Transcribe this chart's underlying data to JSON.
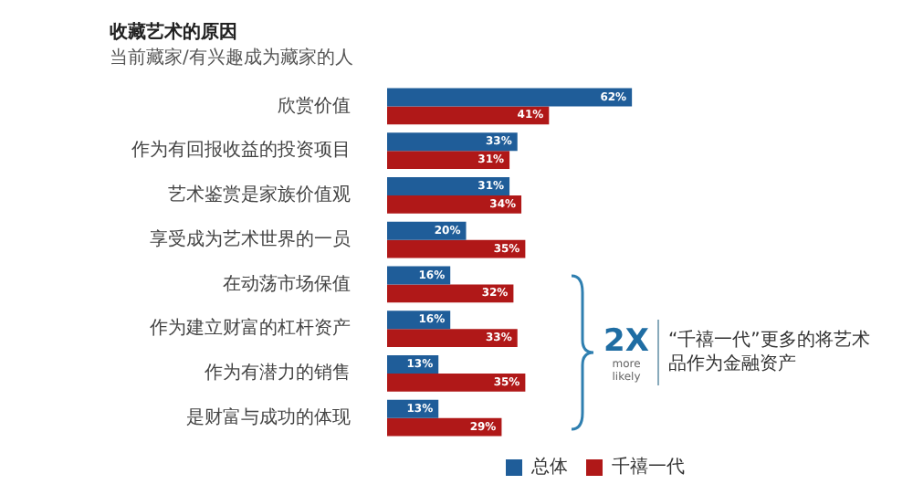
{
  "chart_data": {
    "type": "bar",
    "orientation": "horizontal",
    "title": "收藏艺术的原因",
    "subtitle": "当前藏家/有兴趣成为藏家的人",
    "categories": [
      "欣赏价值",
      "作为有回报收益的投资项目",
      "艺术鉴赏是家族价值观",
      "享受成为艺术世界的一员",
      "在动荡市场保值",
      "作为建立财富的杠杆资产",
      "作为有潜力的销售",
      "是财富与成功的体现"
    ],
    "series": [
      {
        "name": "总体",
        "color": "#1f5d99",
        "values": [
          62,
          33,
          31,
          20,
          16,
          16,
          13,
          13
        ],
        "value_labels": [
          "62%",
          "33%",
          "31%",
          "20%",
          "16%",
          "16%",
          "13%",
          "13%"
        ]
      },
      {
        "name": "千禧一代",
        "color": "#b01818",
        "values": [
          41,
          31,
          34,
          35,
          32,
          33,
          35,
          29
        ],
        "value_labels": [
          "41%",
          "31%",
          "34%",
          "35%",
          "32%",
          "33%",
          "35%",
          "29%"
        ]
      }
    ],
    "legend": "bottom right",
    "annotations": [
      "2X",
      "more likely",
      "“千禧一代”更多的将艺术品作为金融资产"
    ]
  }
}
